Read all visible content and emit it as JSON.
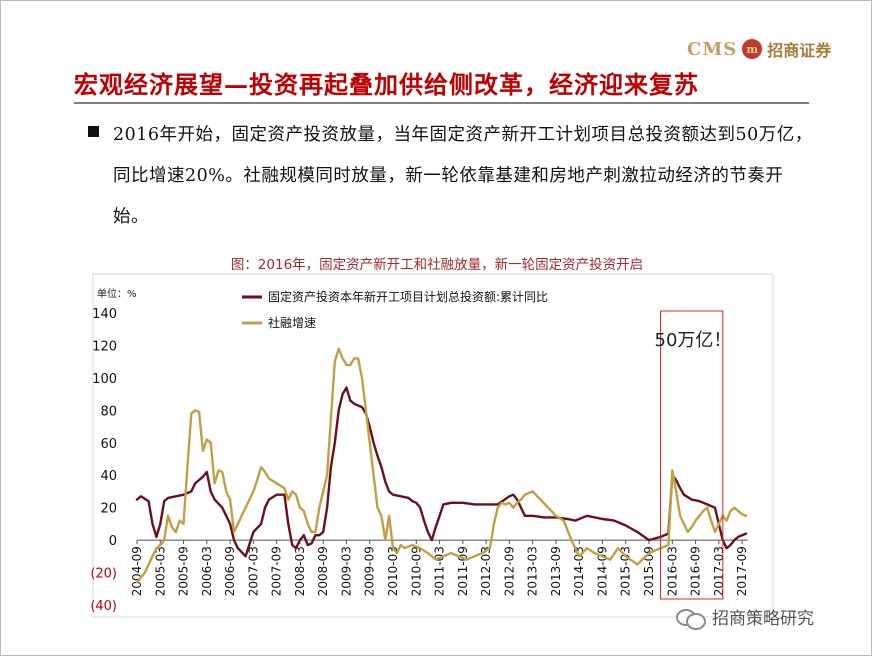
{
  "logo": {
    "text_en": "CMS",
    "seal": "m",
    "text_cn": "招商证券"
  },
  "slide_title": "宏观经济展望—投资再起叠加供给侧改革，经济迎来复苏",
  "bullet_text": "2016年开始，固定资产投资放量，当年固定资产新开工计划项目总投资额达到50万亿，同比增速20%。社融规模同时放量，新一轮依靠基建和房地产刺激拉动经济的节奏开始。",
  "figure_caption": "图：2016年，固定资产新开工和社融放量，新一轮固定资产投资开启",
  "watermark": "招商策略研究",
  "colors": {
    "title": "#c00000",
    "series_fai": "#6b0f1a",
    "series_tsf": "#bfa043",
    "highlight_box": "#e02020",
    "negative_tick": "#c00000"
  },
  "chart_data": {
    "type": "line",
    "unit_label": "单位：%",
    "ylim": [
      -40,
      140
    ],
    "yticks": [
      140,
      120,
      100,
      80,
      60,
      40,
      20,
      0,
      -20,
      -40
    ],
    "ytick_labels": [
      "140",
      "120",
      "100",
      "80",
      "60",
      "40",
      "20",
      "0",
      "(20)",
      "(40)"
    ],
    "x_start": "2004-09",
    "x_end": "2017-10",
    "x_tick_labels": [
      "2004-09",
      "2005-03",
      "2005-09",
      "2006-03",
      "2006-09",
      "2007-03",
      "2007-09",
      "2008-03",
      "2008-09",
      "2009-03",
      "2009-09",
      "2010-03",
      "2010-09",
      "2011-03",
      "2011-09",
      "2012-03",
      "2012-09",
      "2013-03",
      "2013-09",
      "2014-03",
      "2014-09",
      "2015-03",
      "2015-09",
      "2016-03",
      "2016-09",
      "2017-03",
      "2017-09"
    ],
    "grid": false,
    "legend_position": "top-left",
    "annotation": "50万亿！",
    "series": [
      {
        "name": "固定资产投资本年新开工项目计划总投资额:累计同比",
        "color": "#6b0f1a",
        "points": [
          [
            "2004-09",
            25
          ],
          [
            "2004-10",
            27
          ],
          [
            "2004-12",
            24
          ],
          [
            "2005-01",
            10
          ],
          [
            "2005-02",
            2
          ],
          [
            "2005-03",
            10
          ],
          [
            "2005-04",
            24
          ],
          [
            "2005-05",
            26
          ],
          [
            "2005-07",
            27
          ],
          [
            "2005-09",
            28
          ],
          [
            "2005-11",
            30
          ],
          [
            "2005-12",
            35
          ],
          [
            "2006-02",
            39
          ],
          [
            "2006-03",
            42
          ],
          [
            "2006-04",
            30
          ],
          [
            "2006-05",
            25
          ],
          [
            "2006-07",
            20
          ],
          [
            "2006-09",
            10
          ],
          [
            "2006-10",
            0
          ],
          [
            "2006-11",
            -5
          ],
          [
            "2007-01",
            -10
          ],
          [
            "2007-03",
            5
          ],
          [
            "2007-05",
            10
          ],
          [
            "2007-06",
            20
          ],
          [
            "2007-07",
            25
          ],
          [
            "2007-09",
            28
          ],
          [
            "2007-11",
            28
          ],
          [
            "2007-12",
            10
          ],
          [
            "2008-01",
            -3
          ],
          [
            "2008-02",
            -5
          ],
          [
            "2008-03",
            0
          ],
          [
            "2008-04",
            3
          ],
          [
            "2008-05",
            -3
          ],
          [
            "2008-06",
            -2
          ],
          [
            "2008-07",
            3
          ],
          [
            "2008-08",
            3
          ],
          [
            "2008-09",
            5
          ],
          [
            "2008-10",
            20
          ],
          [
            "2008-11",
            45
          ],
          [
            "2008-12",
            60
          ],
          [
            "2009-01",
            80
          ],
          [
            "2009-02",
            90
          ],
          [
            "2009-03",
            94
          ],
          [
            "2009-04",
            86
          ],
          [
            "2009-05",
            84
          ],
          [
            "2009-06",
            83
          ],
          [
            "2009-07",
            82
          ],
          [
            "2009-08",
            78
          ],
          [
            "2009-09",
            70
          ],
          [
            "2009-10",
            60
          ],
          [
            "2009-11",
            52
          ],
          [
            "2009-12",
            45
          ],
          [
            "2010-01",
            36
          ],
          [
            "2010-02",
            30
          ],
          [
            "2010-03",
            28
          ],
          [
            "2010-05",
            27
          ],
          [
            "2010-07",
            26
          ],
          [
            "2010-08",
            24
          ],
          [
            "2010-09",
            23
          ],
          [
            "2010-10",
            20
          ],
          [
            "2010-11",
            12
          ],
          [
            "2010-12",
            5
          ],
          [
            "2011-01",
            0
          ],
          [
            "2011-02",
            8
          ],
          [
            "2011-03",
            15
          ],
          [
            "2011-04",
            22
          ],
          [
            "2011-06",
            23
          ],
          [
            "2011-09",
            23
          ],
          [
            "2011-12",
            22
          ],
          [
            "2012-03",
            22
          ],
          [
            "2012-06",
            22
          ],
          [
            "2012-09",
            27
          ],
          [
            "2012-10",
            28
          ],
          [
            "2012-11",
            25
          ],
          [
            "2012-12",
            20
          ],
          [
            "2013-01",
            15
          ],
          [
            "2013-03",
            15
          ],
          [
            "2013-06",
            14
          ],
          [
            "2013-09",
            14
          ],
          [
            "2013-12",
            13
          ],
          [
            "2014-02",
            12
          ],
          [
            "2014-05",
            15
          ],
          [
            "2014-09",
            13
          ],
          [
            "2014-12",
            12
          ],
          [
            "2015-03",
            9
          ],
          [
            "2015-06",
            5
          ],
          [
            "2015-09",
            0
          ],
          [
            "2015-12",
            2
          ],
          [
            "2016-02",
            4
          ],
          [
            "2016-03",
            40
          ],
          [
            "2016-04",
            37
          ],
          [
            "2016-05",
            32
          ],
          [
            "2016-06",
            28
          ],
          [
            "2016-08",
            25
          ],
          [
            "2016-10",
            24
          ],
          [
            "2016-12",
            22
          ],
          [
            "2017-02",
            20
          ],
          [
            "2017-03",
            10
          ],
          [
            "2017-04",
            0
          ],
          [
            "2017-05",
            -5
          ],
          [
            "2017-06",
            -3
          ],
          [
            "2017-07",
            0
          ],
          [
            "2017-08",
            2
          ],
          [
            "2017-10",
            4
          ]
        ]
      },
      {
        "name": "社融增速",
        "color": "#bfa043",
        "points": [
          [
            "2004-09",
            -26
          ],
          [
            "2004-11",
            -20
          ],
          [
            "2005-01",
            -10
          ],
          [
            "2005-02",
            -5
          ],
          [
            "2005-03",
            -3
          ],
          [
            "2005-04",
            0
          ],
          [
            "2005-05",
            15
          ],
          [
            "2005-06",
            8
          ],
          [
            "2005-07",
            5
          ],
          [
            "2005-08",
            12
          ],
          [
            "2005-09",
            10
          ],
          [
            "2005-10",
            45
          ],
          [
            "2005-11",
            78
          ],
          [
            "2005-12",
            80
          ],
          [
            "2006-01",
            79
          ],
          [
            "2006-02",
            55
          ],
          [
            "2006-03",
            62
          ],
          [
            "2006-04",
            60
          ],
          [
            "2006-05",
            35
          ],
          [
            "2006-06",
            43
          ],
          [
            "2006-07",
            42
          ],
          [
            "2006-08",
            30
          ],
          [
            "2006-09",
            25
          ],
          [
            "2006-10",
            5
          ],
          [
            "2006-11",
            10
          ],
          [
            "2006-12",
            15
          ],
          [
            "2007-01",
            20
          ],
          [
            "2007-02",
            25
          ],
          [
            "2007-03",
            30
          ],
          [
            "2007-04",
            37
          ],
          [
            "2007-05",
            45
          ],
          [
            "2007-06",
            42
          ],
          [
            "2007-07",
            38
          ],
          [
            "2007-09",
            35
          ],
          [
            "2007-11",
            32
          ],
          [
            "2007-12",
            25
          ],
          [
            "2008-01",
            30
          ],
          [
            "2008-02",
            28
          ],
          [
            "2008-03",
            20
          ],
          [
            "2008-04",
            18
          ],
          [
            "2008-05",
            10
          ],
          [
            "2008-06",
            5
          ],
          [
            "2008-07",
            5
          ],
          [
            "2008-08",
            20
          ],
          [
            "2008-09",
            30
          ],
          [
            "2008-10",
            40
          ],
          [
            "2008-11",
            75
          ],
          [
            "2008-12",
            110
          ],
          [
            "2009-01",
            118
          ],
          [
            "2009-02",
            112
          ],
          [
            "2009-03",
            108
          ],
          [
            "2009-04",
            108
          ],
          [
            "2009-05",
            112
          ],
          [
            "2009-06",
            112
          ],
          [
            "2009-07",
            100
          ],
          [
            "2009-08",
            80
          ],
          [
            "2009-09",
            60
          ],
          [
            "2009-10",
            40
          ],
          [
            "2009-11",
            20
          ],
          [
            "2009-12",
            15
          ],
          [
            "2010-01",
            0
          ],
          [
            "2010-02",
            15
          ],
          [
            "2010-03",
            -5
          ],
          [
            "2010-04",
            -8
          ],
          [
            "2010-05",
            -3
          ],
          [
            "2010-06",
            -5
          ],
          [
            "2010-08",
            -3
          ],
          [
            "2010-10",
            -5
          ],
          [
            "2010-12",
            -8
          ],
          [
            "2011-02",
            -12
          ],
          [
            "2011-04",
            -10
          ],
          [
            "2011-06",
            -8
          ],
          [
            "2011-08",
            -10
          ],
          [
            "2011-10",
            -12
          ],
          [
            "2011-12",
            -10
          ],
          [
            "2012-02",
            -8
          ],
          [
            "2012-04",
            -5
          ],
          [
            "2012-05",
            10
          ],
          [
            "2012-06",
            20
          ],
          [
            "2012-07",
            23
          ],
          [
            "2012-08",
            22
          ],
          [
            "2012-09",
            23
          ],
          [
            "2012-10",
            20
          ],
          [
            "2012-11",
            23
          ],
          [
            "2012-12",
            25
          ],
          [
            "2013-01",
            28
          ],
          [
            "2013-03",
            30
          ],
          [
            "2013-05",
            25
          ],
          [
            "2013-07",
            20
          ],
          [
            "2013-09",
            15
          ],
          [
            "2013-11",
            12
          ],
          [
            "2014-01",
            0
          ],
          [
            "2014-03",
            -10
          ],
          [
            "2014-05",
            -5
          ],
          [
            "2014-07",
            -8
          ],
          [
            "2014-09",
            -10
          ],
          [
            "2014-11",
            -12
          ],
          [
            "2015-01",
            -5
          ],
          [
            "2015-03",
            -10
          ],
          [
            "2015-06",
            -15
          ],
          [
            "2015-09",
            -8
          ],
          [
            "2015-12",
            -5
          ],
          [
            "2016-02",
            -3
          ],
          [
            "2016-03",
            43
          ],
          [
            "2016-04",
            30
          ],
          [
            "2016-05",
            15
          ],
          [
            "2016-06",
            10
          ],
          [
            "2016-07",
            5
          ],
          [
            "2016-08",
            8
          ],
          [
            "2016-09",
            12
          ],
          [
            "2016-10",
            15
          ],
          [
            "2016-11",
            18
          ],
          [
            "2016-12",
            20
          ],
          [
            "2017-01",
            12
          ],
          [
            "2017-02",
            5
          ],
          [
            "2017-03",
            10
          ],
          [
            "2017-04",
            15
          ],
          [
            "2017-05",
            12
          ],
          [
            "2017-06",
            18
          ],
          [
            "2017-07",
            20
          ],
          [
            "2017-08",
            18
          ],
          [
            "2017-09",
            16
          ],
          [
            "2017-10",
            15
          ]
        ]
      }
    ],
    "highlight_range": [
      "2016-01",
      "2017-03"
    ]
  }
}
